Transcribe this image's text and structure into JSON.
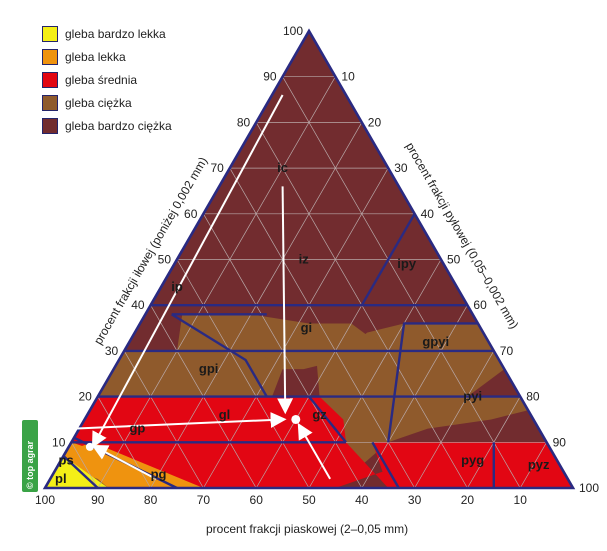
{
  "legend": [
    {
      "label": "gleba bardzo lekka",
      "color": "#f4ef17"
    },
    {
      "label": "gleba lekka",
      "color": "#ef930f"
    },
    {
      "label": "gleba średnia",
      "color": "#e20613"
    },
    {
      "label": "gleba ciężka",
      "color": "#8f5a2c"
    },
    {
      "label": "gleba bardzo ciężka",
      "color": "#722c2f"
    }
  ],
  "axes": {
    "bottom": "procent frakcji piaskowej (2–0,05 mm)",
    "left": "procent frakcji iłowej (poniżej 0,002 mm)",
    "right": "procent frakcji pyłowej (0,05–0,002 mm)"
  },
  "ticks": {
    "bottom": [
      "100",
      "90",
      "80",
      "70",
      "60",
      "50",
      "40",
      "30",
      "20",
      "10"
    ],
    "left": [
      "10",
      "20",
      "30",
      "40",
      "50",
      "60",
      "70",
      "80",
      "90",
      "100"
    ],
    "right": [
      "10",
      "20",
      "30",
      "40",
      "50",
      "60",
      "70",
      "80",
      "90",
      "100"
    ]
  },
  "zones": [
    {
      "id": "ic",
      "label": "ic",
      "class": 4,
      "sand": 20,
      "clay": 70
    },
    {
      "id": "iz",
      "label": "iz",
      "class": 4,
      "sand": 26,
      "clay": 50
    },
    {
      "id": "ipy",
      "label": "ipy",
      "class": 4,
      "sand": 7,
      "clay": 49
    },
    {
      "id": "ip",
      "label": "ip",
      "class": 4,
      "sand": 53,
      "clay": 44
    },
    {
      "id": "gi",
      "label": "gi",
      "class": 3,
      "sand": 33,
      "clay": 35
    },
    {
      "id": "gpyi",
      "label": "gpyi",
      "class": 3,
      "sand": 10,
      "clay": 32
    },
    {
      "id": "gpi",
      "label": "gpi",
      "class": 3,
      "sand": 56,
      "clay": 26
    },
    {
      "id": "gz",
      "label": "gz",
      "class": 3,
      "sand": 40,
      "clay": 16
    },
    {
      "id": "pyi",
      "label": "pyi",
      "class": 3,
      "sand": 9,
      "clay": 20
    },
    {
      "id": "gp",
      "label": "gp",
      "class": 2,
      "sand": 76,
      "clay": 13
    },
    {
      "id": "gl",
      "label": "gl",
      "class": 2,
      "sand": 58,
      "clay": 16
    },
    {
      "id": "pyg",
      "label": "pyg",
      "class": 2,
      "sand": 16,
      "clay": 6
    },
    {
      "id": "pyz",
      "label": "pyz",
      "class": 2,
      "sand": 4,
      "clay": 5
    },
    {
      "id": "pg",
      "label": "pg",
      "class": 1,
      "sand": 77,
      "clay": 3
    },
    {
      "id": "ps",
      "label": "ps",
      "class": 0,
      "sand": 93,
      "clay": 6
    },
    {
      "id": "pl",
      "label": "pl",
      "class": 0,
      "sand": 96,
      "clay": 2
    }
  ],
  "sample_point": {
    "sand": 45,
    "clay": 15
  },
  "reference_point": {
    "sand": 87,
    "clay": 9
  },
  "watermark": "© top agrar"
}
